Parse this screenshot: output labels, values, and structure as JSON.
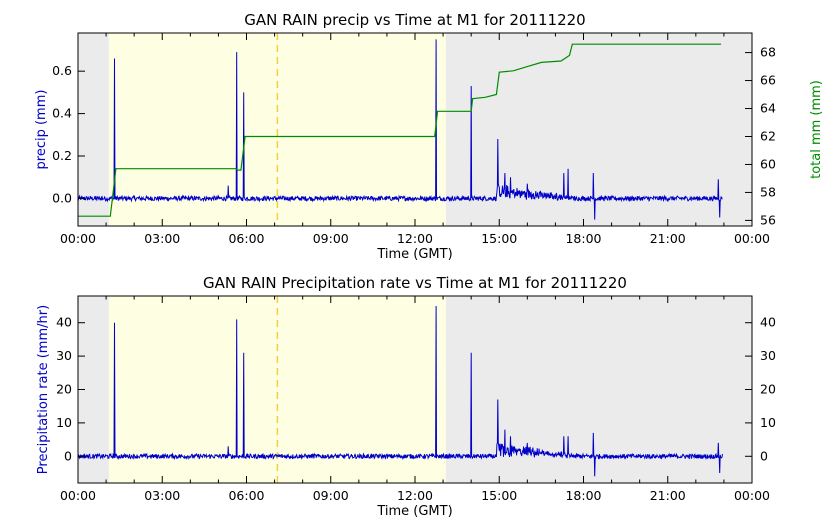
{
  "colors": {
    "night": "#ebebeb",
    "day": "#fefee3",
    "noon_line": "#f2d23c",
    "series_blue": "#0000c8",
    "series_green": "#008c00",
    "axis": "#000000"
  },
  "chart_data": [
    {
      "type": "line",
      "title": "GAN RAIN precip vs Time at M1 for 20111220",
      "xlabel": "Time (GMT)",
      "ylabel": "precip (mm)",
      "ylabel_right": "total mm (mm)",
      "x_ticks": [
        "00:00",
        "03:00",
        "06:00",
        "09:00",
        "12:00",
        "15:00",
        "18:00",
        "21:00",
        "00:00"
      ],
      "y_ticks": [
        "0.0",
        "0.2",
        "0.4",
        "0.6"
      ],
      "y_ticks_right": [
        "56",
        "58",
        "60",
        "62",
        "64",
        "66",
        "68"
      ],
      "xlim_hours": [
        0,
        24
      ],
      "ylim": [
        -0.13,
        0.78
      ],
      "ylim_right": [
        55.6,
        69.4
      ],
      "shading_hours": {
        "night_before": [
          0,
          1.1
        ],
        "day": [
          1.1,
          13.1
        ],
        "night_after": [
          13.1,
          24
        ]
      },
      "noon_line_hour": 7.1,
      "series": [
        {
          "name": "precip",
          "axis": "left",
          "spikes": [
            [
              1.3,
              0.66
            ],
            [
              5.65,
              0.69
            ],
            [
              5.9,
              0.5
            ],
            [
              12.75,
              0.75
            ],
            [
              14.0,
              0.53
            ],
            [
              14.95,
              0.28
            ],
            [
              15.2,
              0.12
            ],
            [
              15.4,
              0.1
            ],
            [
              16.0,
              0.07
            ],
            [
              17.3,
              0.12
            ],
            [
              17.45,
              0.14
            ],
            [
              18.35,
              0.12
            ],
            [
              18.4,
              -0.1
            ],
            [
              22.8,
              0.09
            ],
            [
              22.85,
              -0.09
            ],
            [
              5.35,
              0.06
            ]
          ],
          "baseline": 0.0
        },
        {
          "name": "total mm",
          "axis": "right",
          "points": [
            [
              0.0,
              56.3
            ],
            [
              1.15,
              56.3
            ],
            [
              1.35,
              59.7
            ],
            [
              5.6,
              59.7
            ],
            [
              5.7,
              59.6
            ],
            [
              5.8,
              59.6
            ],
            [
              5.95,
              62.0
            ],
            [
              12.7,
              62.0
            ],
            [
              12.8,
              63.8
            ],
            [
              14.0,
              63.8
            ],
            [
              14.05,
              64.7
            ],
            [
              14.5,
              64.8
            ],
            [
              14.9,
              65.0
            ],
            [
              15.0,
              66.6
            ],
            [
              15.5,
              66.7
            ],
            [
              16.0,
              67.0
            ],
            [
              16.5,
              67.3
            ],
            [
              17.2,
              67.4
            ],
            [
              17.5,
              67.8
            ],
            [
              17.6,
              68.6
            ],
            [
              22.9,
              68.6
            ]
          ]
        }
      ]
    },
    {
      "type": "line",
      "title": "GAN RAIN Precipitation rate vs Time at M1 for 20111220",
      "xlabel": "Time (GMT)",
      "ylabel": "Precipitation rate (mm/hr)",
      "x_ticks": [
        "00:00",
        "03:00",
        "06:00",
        "09:00",
        "12:00",
        "15:00",
        "18:00",
        "21:00",
        "00:00"
      ],
      "y_ticks": [
        "0",
        "10",
        "20",
        "30",
        "40"
      ],
      "y_ticks_right": [
        "0",
        "10",
        "20",
        "30",
        "40"
      ],
      "xlim_hours": [
        0,
        24
      ],
      "ylim": [
        -8,
        48
      ],
      "shading_hours": {
        "night_before": [
          0,
          1.1
        ],
        "day": [
          1.1,
          13.1
        ],
        "night_after": [
          13.1,
          24
        ]
      },
      "noon_line_hour": 7.1,
      "series": [
        {
          "name": "Precipitation rate",
          "axis": "left",
          "spikes": [
            [
              1.3,
              40
            ],
            [
              5.65,
              41
            ],
            [
              5.9,
              31
            ],
            [
              12.75,
              45
            ],
            [
              14.0,
              31
            ],
            [
              14.95,
              17
            ],
            [
              15.2,
              8
            ],
            [
              15.4,
              6
            ],
            [
              16.0,
              4
            ],
            [
              17.3,
              6
            ],
            [
              17.45,
              6
            ],
            [
              18.35,
              7
            ],
            [
              18.4,
              -6
            ],
            [
              22.8,
              4
            ],
            [
              22.85,
              -5
            ],
            [
              5.35,
              3
            ]
          ],
          "baseline": 0
        }
      ]
    }
  ]
}
